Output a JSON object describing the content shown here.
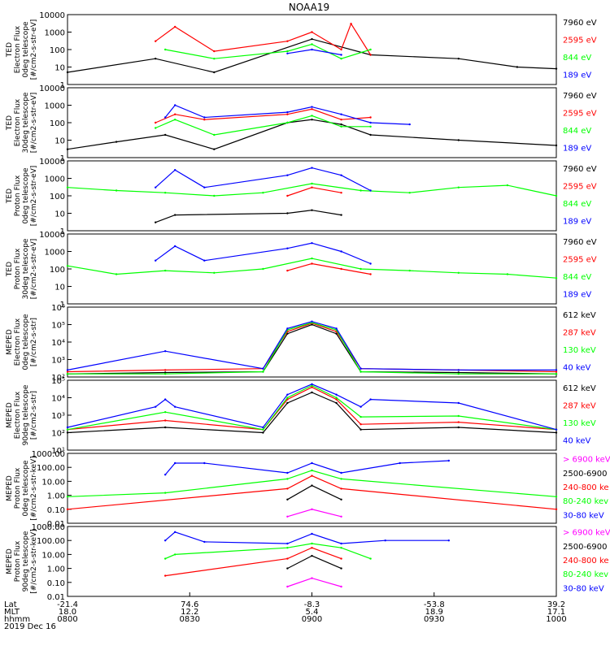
{
  "title": "NOAA19",
  "colors": {
    "black": "#000000",
    "blue": "#0000ff",
    "red": "#ff0000",
    "green": "#00ff00",
    "magenta": "#ff00ff"
  },
  "chart_data": [
    {
      "type": "line",
      "ylog": true,
      "ylim": [
        1,
        10000
      ],
      "ylabel_lines": [
        "TED",
        "Electron Flux",
        "0deg telescope",
        "[#/cm2-s-str-eV]"
      ],
      "yticks": [
        "10000",
        "1000",
        "100",
        "10",
        "1"
      ],
      "legend": [
        {
          "label": "7960 eV",
          "color": "black"
        },
        {
          "label": "2595 eV",
          "color": "red"
        },
        {
          "label": "844 eV",
          "color": "green"
        },
        {
          "label": "189 eV",
          "color": "blue"
        }
      ],
      "series": [
        {
          "name": "7960 eV",
          "color": "black",
          "x": [
            0,
            18,
            30,
            50,
            62,
            80,
            92,
            100
          ],
          "y": [
            5,
            30,
            5,
            400,
            50,
            30,
            10,
            8
          ]
        },
        {
          "name": "2595 eV",
          "color": "red",
          "x": [
            18,
            22,
            30,
            45,
            50,
            56,
            58,
            62
          ],
          "y": [
            300,
            2000,
            80,
            300,
            1000,
            100,
            3000,
            50
          ]
        },
        {
          "name": "844 eV",
          "color": "green",
          "x": [
            20,
            30,
            45,
            50,
            56,
            62
          ],
          "y": [
            100,
            30,
            80,
            200,
            30,
            100
          ]
        },
        {
          "name": "189 eV",
          "color": "blue",
          "x": [
            45,
            50,
            56
          ],
          "y": [
            60,
            100,
            50
          ]
        }
      ]
    },
    {
      "type": "line",
      "ylog": true,
      "ylim": [
        1,
        10000
      ],
      "ylabel_lines": [
        "TED",
        "Electron Flux",
        "30deg telescope",
        "[#/cm2-s-str-eV]"
      ],
      "yticks": [
        "10000",
        "1000",
        "100",
        "10",
        "1"
      ],
      "legend": [
        {
          "label": "7960 eV",
          "color": "black"
        },
        {
          "label": "2595 eV",
          "color": "red"
        },
        {
          "label": "844 eV",
          "color": "green"
        },
        {
          "label": "189 eV",
          "color": "blue"
        }
      ],
      "series": [
        {
          "name": "7960 eV",
          "color": "black",
          "x": [
            0,
            10,
            20,
            30,
            45,
            50,
            56,
            62,
            80,
            100
          ],
          "y": [
            3,
            8,
            20,
            3,
            100,
            150,
            80,
            20,
            10,
            5
          ]
        },
        {
          "name": "2595 eV",
          "color": "red",
          "x": [
            18,
            22,
            28,
            45,
            50,
            56,
            62
          ],
          "y": [
            100,
            300,
            150,
            300,
            600,
            150,
            200
          ]
        },
        {
          "name": "844 eV",
          "color": "green",
          "x": [
            18,
            22,
            30,
            45,
            50,
            56,
            62
          ],
          "y": [
            50,
            150,
            20,
            100,
            250,
            60,
            60
          ]
        },
        {
          "name": "189 eV",
          "color": "blue",
          "x": [
            20,
            22,
            28,
            45,
            50,
            56,
            62,
            70
          ],
          "y": [
            200,
            1000,
            200,
            400,
            800,
            300,
            100,
            80
          ]
        }
      ]
    },
    {
      "type": "line",
      "ylog": true,
      "ylim": [
        1,
        10000
      ],
      "ylabel_lines": [
        "TED",
        "Proton Flux",
        "0deg telescope",
        "[#/cm2-s-str-eV]"
      ],
      "yticks": [
        "10000",
        "1000",
        "100",
        "10",
        "1"
      ],
      "legend": [
        {
          "label": "7960 eV",
          "color": "black"
        },
        {
          "label": "2595 eV",
          "color": "red"
        },
        {
          "label": "844 eV",
          "color": "green"
        },
        {
          "label": "189 eV",
          "color": "blue"
        }
      ],
      "series": [
        {
          "name": "7960 eV",
          "color": "black",
          "x": [
            18,
            22,
            45,
            50,
            56
          ],
          "y": [
            3,
            8,
            10,
            15,
            8
          ]
        },
        {
          "name": "2595 eV",
          "color": "red",
          "x": [
            45,
            50,
            56
          ],
          "y": [
            100,
            300,
            150
          ]
        },
        {
          "name": "844 eV",
          "color": "green",
          "x": [
            0,
            10,
            20,
            30,
            40,
            50,
            60,
            70,
            80,
            90,
            100
          ],
          "y": [
            300,
            200,
            150,
            100,
            150,
            500,
            200,
            150,
            300,
            400,
            100
          ]
        },
        {
          "name": "189 eV",
          "color": "blue",
          "x": [
            18,
            22,
            28,
            45,
            50,
            56,
            62
          ],
          "y": [
            300,
            3000,
            300,
            1500,
            4000,
            1500,
            200
          ]
        }
      ]
    },
    {
      "type": "line",
      "ylog": true,
      "ylim": [
        1,
        10000
      ],
      "ylabel_lines": [
        "TED",
        "Proton Flux",
        "30deg telescope",
        "[#/cm2-s-str-eV]"
      ],
      "yticks": [
        "10000",
        "1000",
        "100",
        "10",
        "1"
      ],
      "legend": [
        {
          "label": "7960 eV",
          "color": "black"
        },
        {
          "label": "2595 eV",
          "color": "red"
        },
        {
          "label": "844 eV",
          "color": "green"
        },
        {
          "label": "189 eV",
          "color": "blue"
        }
      ],
      "series": [
        {
          "name": "2595 eV",
          "color": "red",
          "x": [
            45,
            50,
            56,
            62
          ],
          "y": [
            80,
            200,
            100,
            50
          ]
        },
        {
          "name": "844 eV",
          "color": "green",
          "x": [
            0,
            10,
            20,
            30,
            40,
            50,
            60,
            70,
            80,
            90,
            100
          ],
          "y": [
            150,
            50,
            80,
            60,
            100,
            400,
            100,
            80,
            60,
            50,
            30
          ]
        },
        {
          "name": "189 eV",
          "color": "blue",
          "x": [
            18,
            22,
            28,
            45,
            50,
            56,
            62
          ],
          "y": [
            300,
            2000,
            300,
            1500,
            3000,
            1000,
            200
          ]
        }
      ]
    },
    {
      "type": "line",
      "ylog": true,
      "ylim": [
        100,
        1000000
      ],
      "ylabel_lines": [
        "MEPED",
        "Electron Flux",
        "0deg telescope",
        "[#/cm2-s-str]"
      ],
      "yticks": [
        "10⁶",
        "10⁵",
        "10⁴",
        "10³",
        "10²"
      ],
      "legend": [
        {
          "label": "612 keV",
          "color": "black"
        },
        {
          "label": "287 keV",
          "color": "red"
        },
        {
          "label": "130 keV",
          "color": "green"
        },
        {
          "label": "40 keV",
          "color": "blue"
        }
      ],
      "series": [
        {
          "name": "612 keV",
          "color": "black",
          "x": [
            0,
            20,
            40,
            45,
            50,
            55,
            60,
            80,
            100
          ],
          "y": [
            150,
            180,
            200,
            30000,
            100000,
            30000,
            200,
            180,
            150
          ]
        },
        {
          "name": "287 keV",
          "color": "red",
          "x": [
            0,
            20,
            40,
            45,
            50,
            55,
            60,
            80,
            100
          ],
          "y": [
            200,
            250,
            300,
            40000,
            120000,
            40000,
            300,
            250,
            200
          ]
        },
        {
          "name": "130 keV",
          "color": "green",
          "x": [
            0,
            20,
            40,
            45,
            50,
            55,
            60,
            80,
            100
          ],
          "y": [
            150,
            150,
            200,
            50000,
            130000,
            50000,
            200,
            150,
            150
          ]
        },
        {
          "name": "40 keV",
          "color": "blue",
          "x": [
            0,
            20,
            40,
            45,
            50,
            55,
            60,
            80,
            100
          ],
          "y": [
            250,
            3000,
            300,
            60000,
            150000,
            60000,
            300,
            250,
            250
          ]
        }
      ]
    },
    {
      "type": "line",
      "ylog": true,
      "ylim": [
        10,
        100000
      ],
      "ylabel_lines": [
        "MEPED",
        "Electron Flux",
        "90deg telescope",
        "[#/cm2-s-str]"
      ],
      "yticks": [
        "10⁵",
        "10⁴",
        "10³",
        "10²",
        "10¹"
      ],
      "legend": [
        {
          "label": "612 keV",
          "color": "black"
        },
        {
          "label": "287 keV",
          "color": "red"
        },
        {
          "label": "130 keV",
          "color": "green"
        },
        {
          "label": "40 keV",
          "color": "blue"
        }
      ],
      "series": [
        {
          "name": "612 keV",
          "color": "black",
          "x": [
            0,
            20,
            40,
            45,
            50,
            55,
            60,
            80,
            100
          ],
          "y": [
            100,
            200,
            100,
            5000,
            20000,
            5000,
            150,
            200,
            100
          ]
        },
        {
          "name": "287 keV",
          "color": "red",
          "x": [
            0,
            20,
            40,
            45,
            50,
            55,
            60,
            80,
            100
          ],
          "y": [
            150,
            500,
            150,
            8000,
            40000,
            8000,
            300,
            400,
            150
          ]
        },
        {
          "name": "130 keV",
          "color": "green",
          "x": [
            0,
            20,
            40,
            45,
            50,
            55,
            60,
            80,
            100
          ],
          "y": [
            150,
            1500,
            150,
            10000,
            50000,
            10000,
            800,
            900,
            150
          ]
        },
        {
          "name": "40 keV",
          "color": "blue",
          "x": [
            0,
            18,
            20,
            22,
            40,
            45,
            50,
            55,
            60,
            62,
            80,
            100
          ],
          "y": [
            200,
            3000,
            8000,
            3000,
            200,
            15000,
            60000,
            15000,
            3000,
            8000,
            5000,
            150
          ]
        }
      ]
    },
    {
      "type": "line",
      "ylog": true,
      "ylim": [
        0.01,
        1000
      ],
      "ylabel_lines": [
        "MEPED",
        "Proton Flux",
        "0deg telescope",
        "[#/cm2-s-str-keV]"
      ],
      "yticks": [
        "1000.00",
        "100.00",
        "10.00",
        "1.00",
        "0.10",
        "0.01"
      ],
      "legend": [
        {
          "label": "> 6900 keV",
          "color": "magenta"
        },
        {
          "label": "2500-6900",
          "color": "black"
        },
        {
          "label": "240-800 ke",
          "color": "red"
        },
        {
          "label": "80-240 kev",
          "color": "green"
        },
        {
          "label": "30-80 keV",
          "color": "blue"
        }
      ],
      "series": [
        {
          "name": "> 6900 keV",
          "color": "magenta",
          "x": [
            45,
            50,
            56
          ],
          "y": [
            0.03,
            0.1,
            0.03
          ]
        },
        {
          "name": "2500-6900",
          "color": "black",
          "x": [
            45,
            50,
            56
          ],
          "y": [
            0.5,
            5,
            0.5
          ]
        },
        {
          "name": "240-800 ke",
          "color": "red",
          "x": [
            0,
            45,
            50,
            56,
            100
          ],
          "y": [
            0.1,
            3,
            25,
            3,
            0.1
          ]
        },
        {
          "name": "80-240 kev",
          "color": "green",
          "x": [
            0,
            20,
            45,
            50,
            56,
            100
          ],
          "y": [
            0.8,
            1.5,
            15,
            60,
            15,
            0.8
          ]
        },
        {
          "name": "30-80 keV",
          "color": "blue",
          "x": [
            20,
            22,
            28,
            45,
            50,
            56,
            68,
            78
          ],
          "y": [
            30,
            200,
            200,
            40,
            200,
            40,
            200,
            300
          ]
        }
      ]
    },
    {
      "type": "line",
      "ylog": true,
      "ylim": [
        0.01,
        1000
      ],
      "ylabel_lines": [
        "MEPED",
        "Proton Flux",
        "90deg telescope",
        "[#/cm2-s-str-keV]"
      ],
      "yticks": [
        "1000.00",
        "100.00",
        "10.00",
        "1.00",
        "0.10",
        "0.01"
      ],
      "legend": [
        {
          "label": "> 6900 keV",
          "color": "magenta"
        },
        {
          "label": "2500-6900",
          "color": "black"
        },
        {
          "label": "240-800 ke",
          "color": "red"
        },
        {
          "label": "80-240 kev",
          "color": "green"
        },
        {
          "label": "30-80 keV",
          "color": "blue"
        }
      ],
      "series": [
        {
          "name": "> 6900 keV",
          "color": "magenta",
          "x": [
            45,
            50,
            56
          ],
          "y": [
            0.05,
            0.2,
            0.05
          ]
        },
        {
          "name": "2500-6900",
          "color": "black",
          "x": [
            45,
            50,
            56
          ],
          "y": [
            1,
            8,
            1
          ]
        },
        {
          "name": "240-800 ke",
          "color": "red",
          "x": [
            20,
            45,
            50,
            56
          ],
          "y": [
            0.3,
            5,
            30,
            5
          ]
        },
        {
          "name": "80-240 kev",
          "color": "green",
          "x": [
            20,
            22,
            45,
            50,
            56,
            62
          ],
          "y": [
            5,
            10,
            30,
            60,
            30,
            5
          ]
        },
        {
          "name": "30-80 keV",
          "color": "blue",
          "x": [
            20,
            22,
            28,
            45,
            50,
            56,
            65,
            78
          ],
          "y": [
            100,
            400,
            80,
            60,
            300,
            60,
            100,
            100
          ]
        }
      ]
    }
  ],
  "x_axis": {
    "row_labels": [
      "Lat",
      "MLT",
      "hhmm"
    ],
    "ticks": [
      {
        "lat": "-21.4",
        "mlt": "18.0",
        "hhmm": "0800"
      },
      {
        "lat": "74.6",
        "mlt": "12.2",
        "hhmm": "0830"
      },
      {
        "lat": "-8.3",
        "mlt": "5.4",
        "hhmm": "0900"
      },
      {
        "lat": "-53.8",
        "mlt": "18.9",
        "hhmm": "0930"
      },
      {
        "lat": "39.2",
        "mlt": "17.1",
        "hhmm": "1000"
      }
    ],
    "date": "2019 Dec 16"
  }
}
